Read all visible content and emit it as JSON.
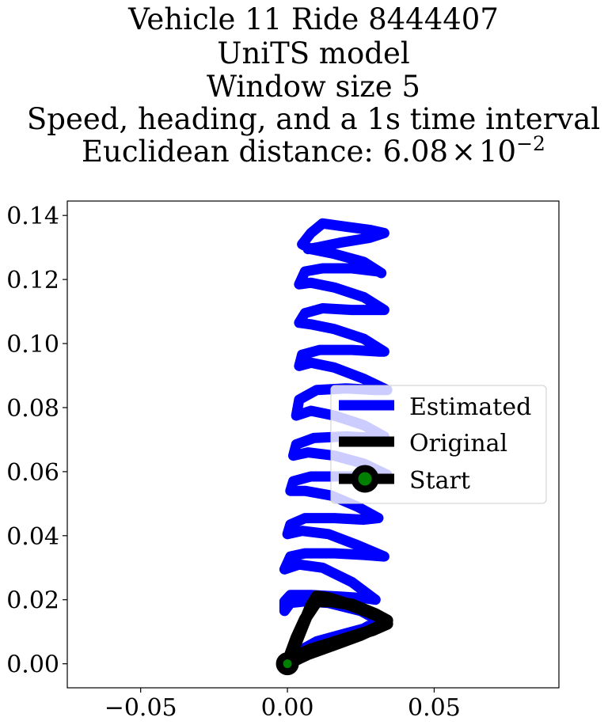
{
  "chart_data": {
    "type": "line",
    "title_lines": [
      "Vehicle 11 Ride 8444407",
      "UniTS model",
      "Window size 5",
      "Speed, heading, and a 1s time interval"
    ],
    "distance_label": "Euclidean distance: ",
    "distance_mantissa": "6.08",
    "distance_times": "×",
    "distance_base": "10",
    "distance_exponent": "−2",
    "xlabel": "",
    "ylabel": "",
    "xlim": [
      -0.075,
      0.0925
    ],
    "ylim": [
      -0.0075,
      0.1445
    ],
    "x_ticks": [
      -0.05,
      0.0,
      0.05
    ],
    "x_tick_labels": [
      "−0.05",
      "0.00",
      "0.05"
    ],
    "y_ticks": [
      0.0,
      0.02,
      0.04,
      0.06,
      0.08,
      0.1,
      0.12,
      0.14
    ],
    "y_tick_labels": [
      "0.00",
      "0.02",
      "0.04",
      "0.06",
      "0.08",
      "0.10",
      "0.12",
      "0.14"
    ],
    "grid": false,
    "legend_position": "center-right",
    "series": [
      {
        "name": "Estimated",
        "color": "#0000ff",
        "points": [
          [
            0.0,
            0.0
          ],
          [
            0.004,
            0.004
          ],
          [
            0.01,
            0.007
          ],
          [
            0.018,
            0.009
          ],
          [
            0.026,
            0.011
          ],
          [
            0.031,
            0.0135
          ],
          [
            0.025,
            0.0165
          ],
          [
            0.014,
            0.019
          ],
          [
            0.006,
            0.0195
          ],
          [
            0.001,
            0.019
          ],
          [
            -0.001,
            0.0165
          ],
          [
            -0.001,
            0.0195
          ],
          [
            0.001,
            0.0215
          ],
          [
            0.008,
            0.0215
          ],
          [
            0.018,
            0.021
          ],
          [
            0.026,
            0.0205
          ],
          [
            0.03,
            0.02
          ],
          [
            0.022,
            0.0255
          ],
          [
            0.012,
            0.03
          ],
          [
            0.004,
            0.031
          ],
          [
            -0.001,
            0.0295
          ],
          [
            0.001,
            0.0335
          ],
          [
            0.006,
            0.0345
          ],
          [
            0.016,
            0.0345
          ],
          [
            0.026,
            0.034
          ],
          [
            0.033,
            0.0335
          ],
          [
            0.024,
            0.037
          ],
          [
            0.014,
            0.0405
          ],
          [
            0.005,
            0.0415
          ],
          [
            0.0,
            0.0405
          ],
          [
            0.001,
            0.0435
          ],
          [
            0.006,
            0.0455
          ],
          [
            0.016,
            0.0455
          ],
          [
            0.026,
            0.045
          ],
          [
            0.031,
            0.0455
          ],
          [
            0.024,
            0.049
          ],
          [
            0.015,
            0.0525
          ],
          [
            0.006,
            0.054
          ],
          [
            0.001,
            0.054
          ],
          [
            0.002,
            0.057
          ],
          [
            0.008,
            0.0585
          ],
          [
            0.02,
            0.0585
          ],
          [
            0.031,
            0.0585
          ],
          [
            0.034,
            0.059
          ],
          [
            0.026,
            0.0625
          ],
          [
            0.016,
            0.065
          ],
          [
            0.007,
            0.066
          ],
          [
            0.002,
            0.065
          ],
          [
            0.003,
            0.0685
          ],
          [
            0.009,
            0.0705
          ],
          [
            0.02,
            0.071
          ],
          [
            0.03,
            0.0705
          ],
          [
            0.033,
            0.071
          ],
          [
            0.026,
            0.0745
          ],
          [
            0.016,
            0.0775
          ],
          [
            0.008,
            0.079
          ],
          [
            0.003,
            0.0775
          ],
          [
            0.004,
            0.0825
          ],
          [
            0.01,
            0.0855
          ],
          [
            0.02,
            0.086
          ],
          [
            0.03,
            0.0855
          ],
          [
            0.034,
            0.0855
          ],
          [
            0.026,
            0.089
          ],
          [
            0.016,
            0.0925
          ],
          [
            0.008,
            0.094
          ],
          [
            0.004,
            0.093
          ],
          [
            0.005,
            0.0965
          ],
          [
            0.011,
            0.098
          ],
          [
            0.022,
            0.098
          ],
          [
            0.031,
            0.0975
          ],
          [
            0.033,
            0.0975
          ],
          [
            0.026,
            0.1015
          ],
          [
            0.016,
            0.1045
          ],
          [
            0.008,
            0.106
          ],
          [
            0.004,
            0.1065
          ],
          [
            0.006,
            0.1095
          ],
          [
            0.012,
            0.111
          ],
          [
            0.022,
            0.1105
          ],
          [
            0.031,
            0.1105
          ],
          [
            0.033,
            0.1105
          ],
          [
            0.026,
            0.1145
          ],
          [
            0.016,
            0.1175
          ],
          [
            0.008,
            0.119
          ],
          [
            0.004,
            0.1185
          ],
          [
            0.006,
            0.1225
          ],
          [
            0.012,
            0.1235
          ],
          [
            0.022,
            0.1235
          ],
          [
            0.031,
            0.1225
          ],
          [
            0.032,
            0.122
          ],
          [
            0.026,
            0.1255
          ],
          [
            0.016,
            0.128
          ],
          [
            0.008,
            0.1295
          ],
          [
            0.005,
            0.131
          ],
          [
            0.008,
            0.1345
          ],
          [
            0.012,
            0.1375
          ],
          [
            0.02,
            0.1365
          ],
          [
            0.028,
            0.1355
          ],
          [
            0.033,
            0.1345
          ],
          [
            0.028,
            0.133
          ],
          [
            0.018,
            0.1315
          ],
          [
            0.01,
            0.13
          ],
          [
            0.007,
            0.1295
          ]
        ]
      },
      {
        "name": "Original",
        "color": "#000000",
        "points": [
          [
            0.0,
            0.0
          ],
          [
            0.0025,
            0.0055
          ],
          [
            0.0055,
            0.0125
          ],
          [
            0.008,
            0.018
          ],
          [
            0.01,
            0.021
          ],
          [
            0.014,
            0.0205
          ],
          [
            0.021,
            0.0185
          ],
          [
            0.028,
            0.016
          ],
          [
            0.033,
            0.014
          ],
          [
            0.034,
            0.0125
          ],
          [
            0.029,
            0.0105
          ],
          [
            0.022,
            0.0085
          ],
          [
            0.015,
            0.0065
          ],
          [
            0.008,
            0.0045
          ],
          [
            0.003,
            0.0025
          ],
          [
            0.0005,
            0.0005
          ],
          [
            0.004,
            0.0025
          ],
          [
            0.01,
            0.0045
          ],
          [
            0.018,
            0.007
          ],
          [
            0.026,
            0.0095
          ],
          [
            0.032,
            0.012
          ],
          [
            0.034,
            0.0135
          ],
          [
            0.03,
            0.0155
          ],
          [
            0.022,
            0.0185
          ],
          [
            0.015,
            0.0195
          ],
          [
            0.01,
            0.0195
          ],
          [
            0.006,
            0.014
          ],
          [
            0.003,
            0.008
          ],
          [
            0.001,
            0.003
          ],
          [
            0.0,
            0.0
          ],
          [
            0.007,
            0.003
          ],
          [
            0.016,
            0.006
          ],
          [
            0.025,
            0.009
          ],
          [
            0.031,
            0.0115
          ],
          [
            0.033,
            0.0135
          ]
        ]
      }
    ],
    "start_marker": {
      "name": "Start",
      "x": 0.0,
      "y": 0.0,
      "ring_color": "#000000",
      "fill_color": "#008000"
    }
  }
}
